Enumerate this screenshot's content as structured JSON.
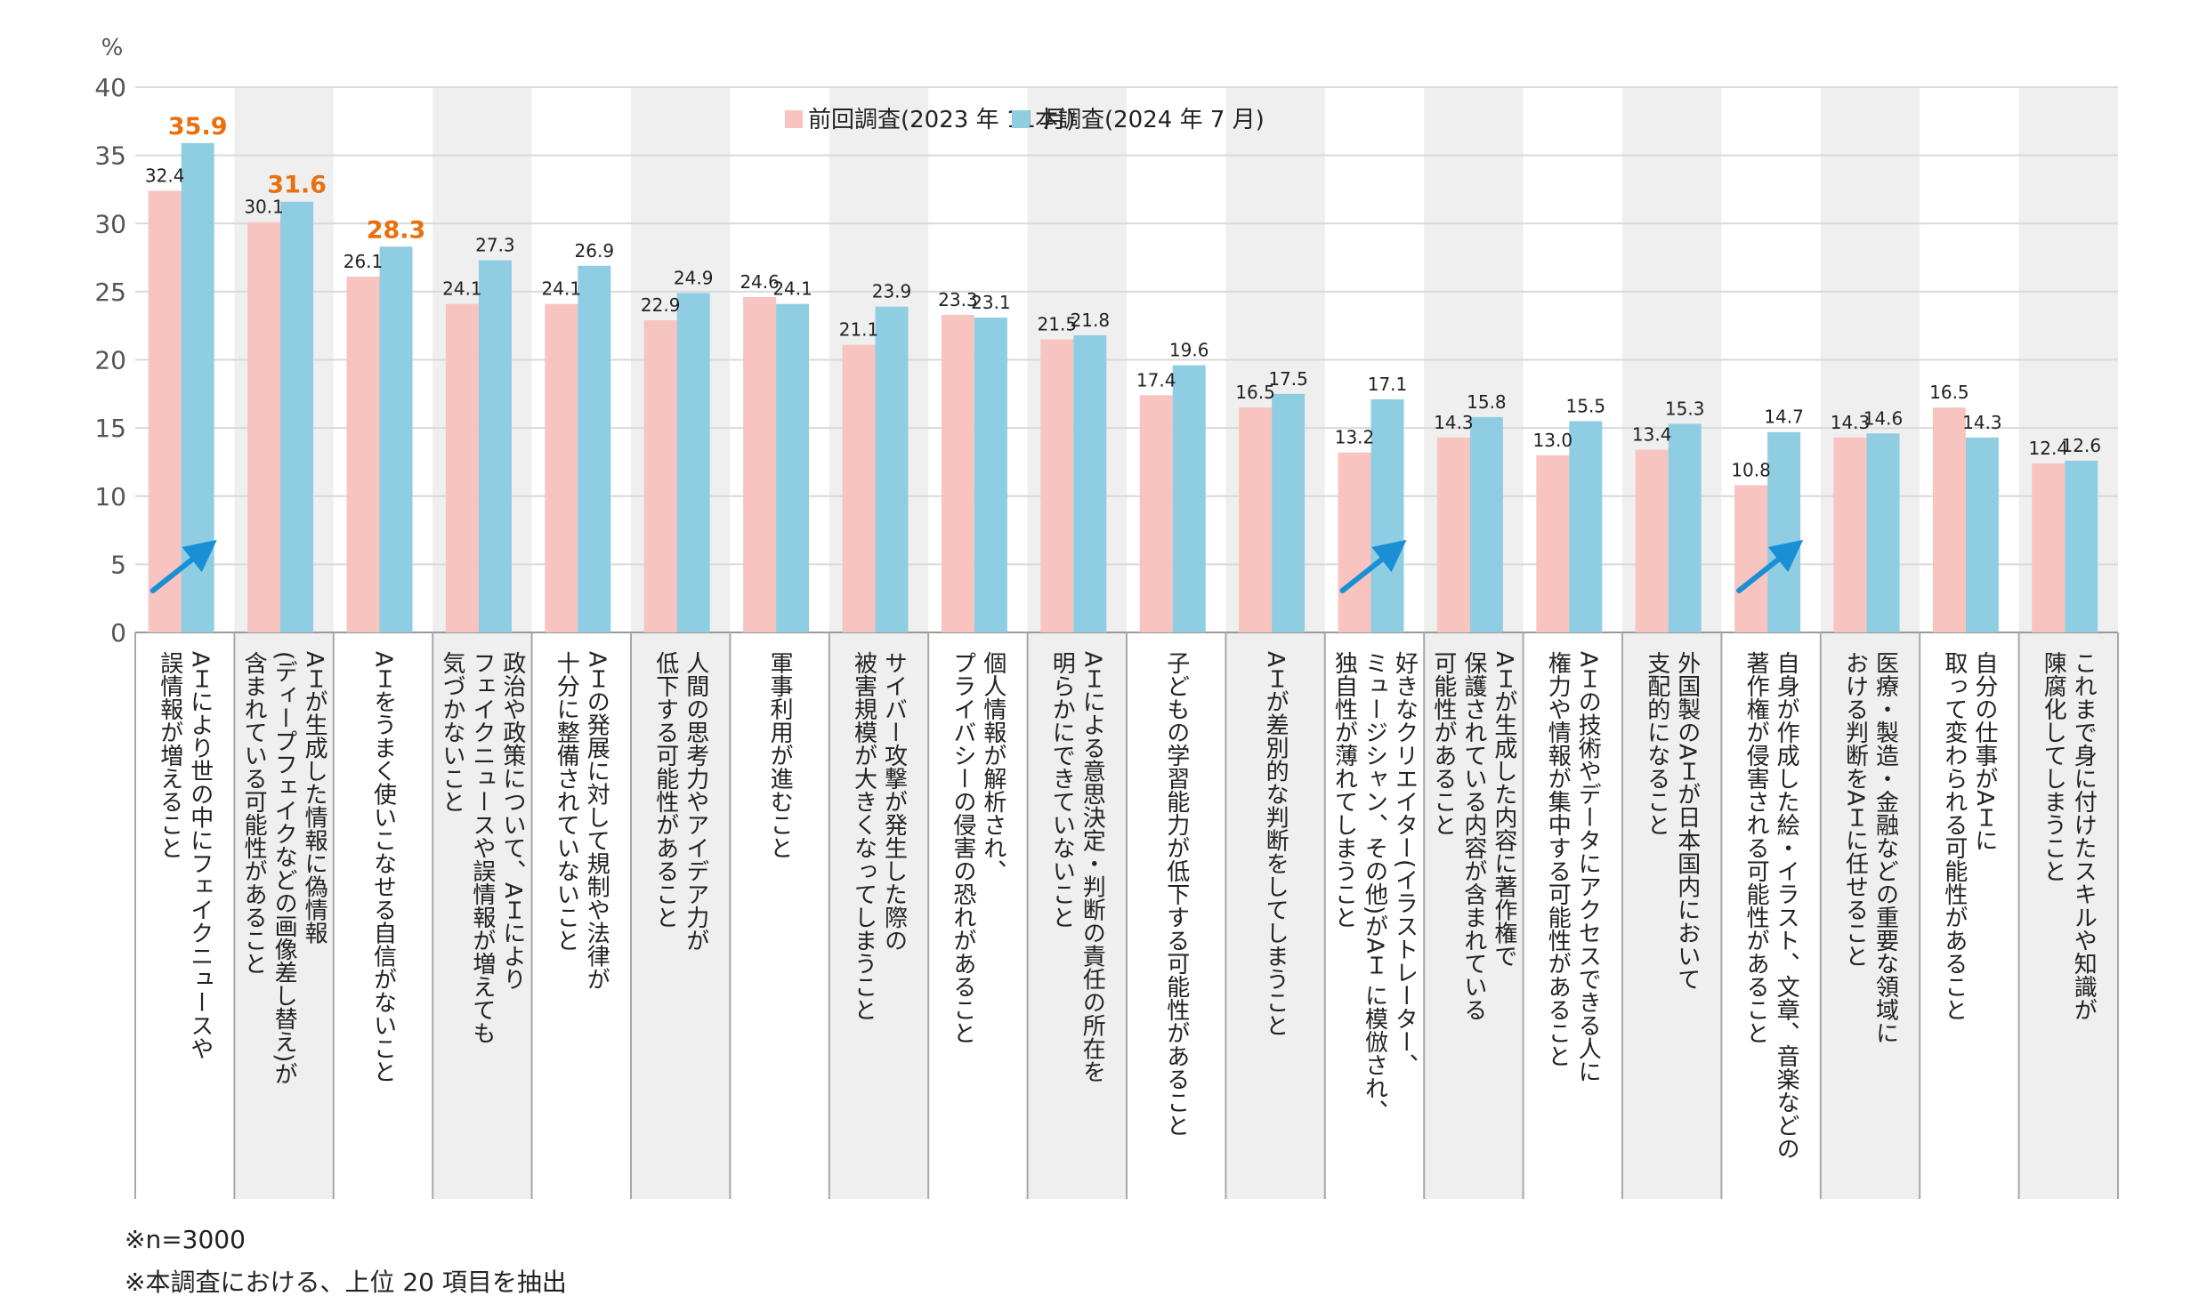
{
  "chart_data": {
    "type": "bar",
    "yunit": "%",
    "ylim": [
      0,
      40
    ],
    "yticks": [
      0,
      5,
      10,
      15,
      20,
      25,
      30,
      35,
      40
    ],
    "grid": true,
    "legend_position": "top-center",
    "series": [
      {
        "name": "前回調査(2023 年 11 月)",
        "color": "#f7c4c0",
        "values": [
          32.4,
          30.1,
          26.1,
          24.1,
          24.1,
          22.9,
          24.6,
          21.1,
          23.3,
          21.5,
          17.4,
          16.5,
          13.2,
          14.3,
          13.0,
          13.4,
          10.8,
          14.3,
          16.5,
          12.4
        ],
        "value_labels": [
          "32.4",
          "30.1",
          "26.1",
          "24.1",
          "24.1",
          "22.9",
          "24.6",
          "21.1",
          "23.3",
          "21.5",
          "17.4",
          "16.5",
          "13.2",
          "14.3",
          "13.0",
          "13.4",
          "10.8",
          "14.3",
          "16.5",
          "12.4"
        ]
      },
      {
        "name": "本調査(2024 年 7 月)",
        "color": "#8fcde3",
        "values": [
          35.9,
          31.6,
          28.3,
          27.3,
          26.9,
          24.9,
          24.1,
          23.9,
          23.1,
          21.8,
          19.6,
          17.5,
          17.1,
          15.8,
          15.5,
          15.3,
          14.7,
          14.6,
          14.3,
          12.6
        ],
        "value_labels": [
          "35.9",
          "31.6",
          "28.3",
          "27.3",
          "26.9",
          "24.9",
          "24.1",
          "23.9",
          "23.1",
          "21.8",
          "19.6",
          "17.5",
          "17.1",
          "15.8",
          "15.5",
          "15.3",
          "14.7",
          "14.6",
          "14.3",
          "12.6"
        ]
      }
    ],
    "highlight_color": "#e8700f",
    "highlighted_labels": [
      [
        0,
        1
      ],
      [
        1,
        1
      ],
      [
        2,
        1
      ]
    ],
    "arrows": {
      "color": "#1a8fd6",
      "categories": [
        0,
        12,
        16
      ]
    },
    "categories": [
      [
        "AＩにより世の中にフェイクニュースや",
        "誤情報が増えること"
      ],
      [
        "AＩが生成した情報に偽情報",
        "(ディープフェイクなどの画像差し替え)が",
        "含まれている可能性があること"
      ],
      [
        "AＩをうまく使いこなせる自信がないこと"
      ],
      [
        "政治や政策について、AＩにより",
        "フェイクニュースや誤情報が増えても",
        "気づかないこと"
      ],
      [
        "AＩの発展に対して規制や法律が",
        "十分に整備されていないこと"
      ],
      [
        "人間の思考力やアイデア力が",
        "低下する可能性があること"
      ],
      [
        "軍事利用が進むこと"
      ],
      [
        "サイバー攻撃が発生した際の",
        "被害規模が大きくなってしまうこと"
      ],
      [
        "個人情報が解析され、",
        "プライバシーの侵害の恐れがあること"
      ],
      [
        "AＩによる意思決定・判断の責任の所在を",
        "明らかにできていないこと"
      ],
      [
        "子どもの学習能力が低下する可能性があること"
      ],
      [
        "AＩが差別的な判断をしてしまうこと"
      ],
      [
        "好きなクリエイター(イラストレーター、",
        "ミュージシャン、その他)がAＩ に模倣され、",
        "独自性が薄れてしまうこと"
      ],
      [
        "AＩが生成した内容に著作権で",
        "保護されている内容が含まれている",
        "可能性があること"
      ],
      [
        "AＩの技術やデータにアクセスできる人に",
        "権力や情報が集中する可能性があること"
      ],
      [
        "外国製のAＩが日本国内において",
        "支配的になること"
      ],
      [
        "自身が作成した絵・イラスト、文章、音楽などの",
        "著作権が侵害される可能性があること"
      ],
      [
        "医療・製造・金融などの重要な領域に",
        "おける判断をAＩに任せること"
      ],
      [
        "自分の仕事がAＩに",
        "取って変わられる可能性があること"
      ],
      [
        "これまで身に付けたスキルや知識が",
        "陳腐化してしまうこと"
      ]
    ]
  },
  "notes": [
    "※n=3000",
    "※本調査における、上位 20 項目を抽出"
  ]
}
